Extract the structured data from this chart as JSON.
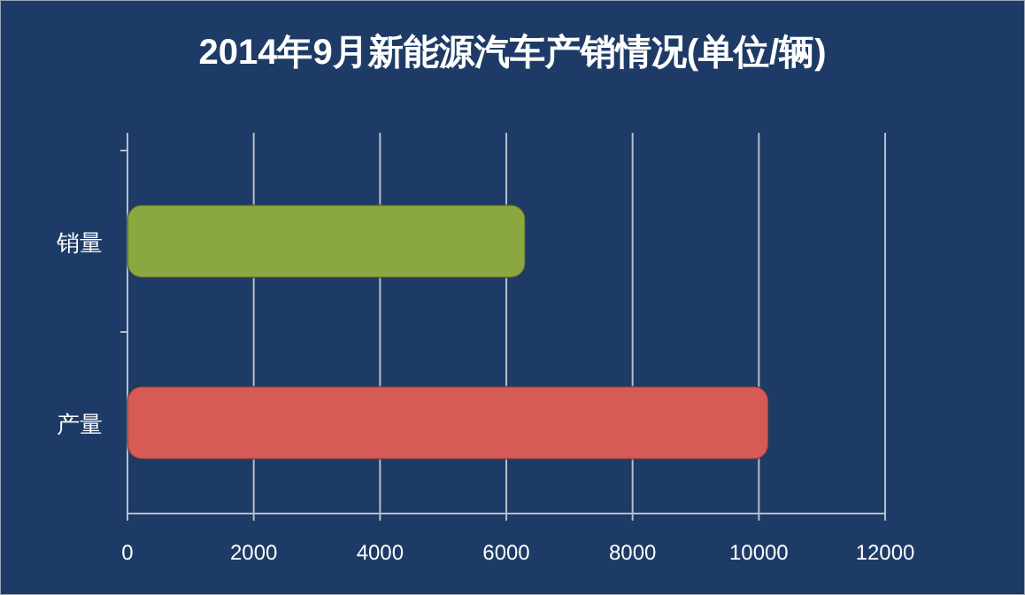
{
  "chart_data": {
    "type": "bar",
    "orientation": "horizontal",
    "title": "2014年9月新能源汽车产销情况(单位/辆)",
    "categories": [
      "销量",
      "产量"
    ],
    "values": [
      6300,
      10150
    ],
    "colors": [
      "#8aa83f",
      "#d65a55"
    ],
    "xlim": [
      0,
      12000
    ],
    "xticks": [
      0,
      2000,
      4000,
      6000,
      8000,
      10000,
      12000
    ],
    "grid": "x"
  }
}
